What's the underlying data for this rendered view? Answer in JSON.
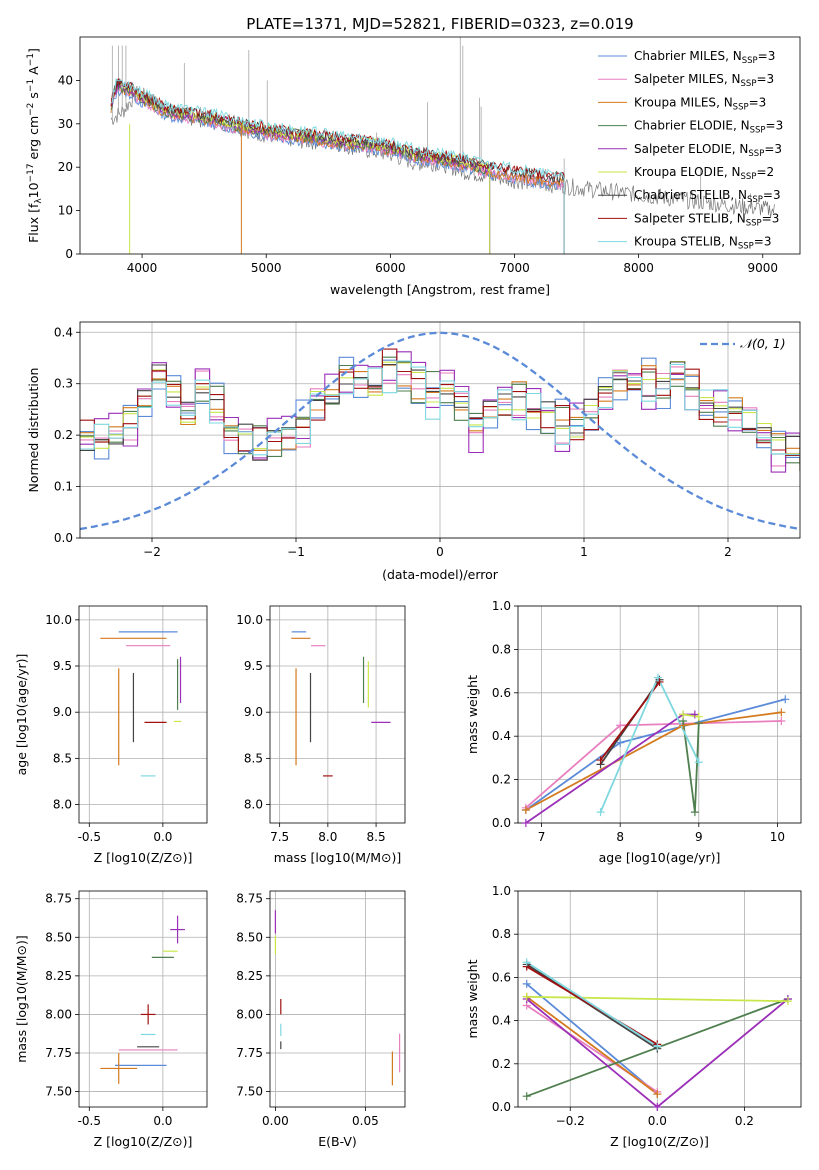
{
  "colors": {
    "Chabrier MILES": "#5b8bd8",
    "Salpeter MILES": "#e87fbf",
    "Kroupa MILES": "#d47a1e",
    "Chabrier ELODIE": "#4f7f4f",
    "Salpeter ELODIE": "#9b2fb8",
    "Kroupa ELODIE": "#c8e64a",
    "Chabrier STELIB": "#444444",
    "Salpeter STELIB": "#a01010",
    "Kroupa STELIB": "#7fd8e0",
    "normal": "#5b8bd8"
  },
  "chart_data": [
    {
      "id": "spectrum",
      "type": "line",
      "title": "PLATE=1371, MJD=52821, FIBERID=0323, z=0.019",
      "xlabel": "wavelength [Angstrom, rest frame]",
      "ylabel": "Flux [f_λ10^-17 erg cm^-2 s^-1 A^-1]",
      "xlim": [
        3500,
        9300
      ],
      "ylim": [
        0,
        50
      ],
      "xticks": [
        4000,
        5000,
        6000,
        7000,
        8000,
        9000
      ],
      "yticks": [
        0,
        10,
        20,
        30,
        40
      ],
      "grid": false,
      "legend_position": "top-right",
      "legend": [
        {
          "name": "Chabrier MILES",
          "nssp": "3"
        },
        {
          "name": "Salpeter MILES",
          "nssp": "3"
        },
        {
          "name": "Kroupa MILES",
          "nssp": "3"
        },
        {
          "name": "Chabrier ELODIE",
          "nssp": "3"
        },
        {
          "name": "Salpeter ELODIE",
          "nssp": "3"
        },
        {
          "name": "Kroupa ELODIE",
          "nssp": "2"
        },
        {
          "name": "Chabrier STELIB",
          "nssp": "3"
        },
        {
          "name": "Salpeter STELIB",
          "nssp": "3"
        },
        {
          "name": "Kroupa STELIB",
          "nssp": "3"
        }
      ],
      "data_continuum": [
        [
          3750,
          31
        ],
        [
          3850,
          33
        ],
        [
          3950,
          37
        ],
        [
          4050,
          36
        ],
        [
          4150,
          34
        ],
        [
          4300,
          32
        ],
        [
          4500,
          31
        ],
        [
          4700,
          30
        ],
        [
          4900,
          28
        ],
        [
          5100,
          27
        ],
        [
          5300,
          26
        ],
        [
          5500,
          26
        ],
        [
          5800,
          24
        ],
        [
          6000,
          23
        ],
        [
          6200,
          21
        ],
        [
          6400,
          21
        ],
        [
          6600,
          19
        ],
        [
          6800,
          18
        ],
        [
          7000,
          17
        ],
        [
          7300,
          16
        ],
        [
          7600,
          15
        ],
        [
          7900,
          14
        ],
        [
          8200,
          13
        ],
        [
          8500,
          12
        ],
        [
          8800,
          11
        ],
        [
          9000,
          10.5
        ],
        [
          9100,
          10
        ]
      ],
      "model_continuum": [
        [
          3750,
          34
        ],
        [
          3800,
          39
        ],
        [
          3900,
          38
        ],
        [
          4000,
          36
        ],
        [
          4200,
          33
        ],
        [
          4400,
          32
        ],
        [
          4600,
          31
        ],
        [
          4800,
          29.5
        ],
        [
          5000,
          28.5
        ],
        [
          5200,
          27.5
        ],
        [
          5400,
          27
        ],
        [
          5600,
          26
        ],
        [
          5800,
          25.5
        ],
        [
          6000,
          24.5
        ],
        [
          6200,
          23
        ],
        [
          6400,
          22
        ],
        [
          6600,
          21
        ],
        [
          6800,
          19.5
        ],
        [
          7000,
          18.5
        ],
        [
          7200,
          17.5
        ],
        [
          7400,
          17
        ]
      ]
    },
    {
      "id": "residual-hist",
      "type": "line",
      "xlabel": "(data-model)/error",
      "ylabel": "Normed distribution",
      "xlim": [
        -2.5,
        2.5
      ],
      "ylim": [
        0,
        0.42
      ],
      "xticks": [
        -2,
        -1,
        0,
        1,
        2
      ],
      "yticks": [
        0.0,
        0.1,
        0.2,
        0.3,
        0.4
      ],
      "grid": true,
      "legend_position": "top-right",
      "normal_label": "𝒩(0, 1)",
      "bin_width": 0.1,
      "histogram_envelope": [
        0.19,
        0.19,
        0.2,
        0.23,
        0.26,
        0.31,
        0.27,
        0.24,
        0.3,
        0.26,
        0.2,
        0.2,
        0.18,
        0.19,
        0.2,
        0.22,
        0.26,
        0.28,
        0.3,
        0.31,
        0.3,
        0.33,
        0.32,
        0.3,
        0.28,
        0.29,
        0.26,
        0.22,
        0.24,
        0.26,
        0.27,
        0.25,
        0.24,
        0.22,
        0.22,
        0.24,
        0.28,
        0.31,
        0.3,
        0.3,
        0.29,
        0.32,
        0.29,
        0.26,
        0.25,
        0.24,
        0.23,
        0.2,
        0.18,
        0.17,
        0.15,
        0.12,
        0.11,
        0.1,
        0.12,
        0.1,
        0.08,
        0.09,
        0.07,
        0.1,
        0.1,
        0.11,
        0.07,
        0.06,
        0.08,
        0.06,
        0.07,
        0.05,
        0.04,
        0.05,
        0.04,
        0.05,
        0.04,
        0.03,
        0.04,
        0.03,
        0.04,
        0.03,
        0.03,
        0.03
      ],
      "series_offsets": [
        0.03,
        -0.02,
        0.01,
        0.02,
        -0.03,
        0.0,
        -0.01,
        0.015,
        -0.025
      ]
    },
    {
      "id": "age-vs-Z",
      "type": "scatter",
      "xlabel": "Z [log10(Z/Z⊙)]",
      "ylabel": "age [log10(age/yr)]",
      "xlim": [
        -0.57,
        0.3
      ],
      "ylim": [
        7.8,
        10.15
      ],
      "xticks": [
        -0.5,
        0.0
      ],
      "yticks": [
        8.0,
        8.5,
        9.0,
        9.5,
        10.0
      ],
      "xtick_labels": [
        "-0.5",
        "0.0"
      ],
      "ytick_labels": [
        "8.0",
        "8.5",
        "9.0",
        "9.5",
        "10.0"
      ],
      "grid": true,
      "points": [
        {
          "s": "Chabrier MILES",
          "x": -0.1,
          "y": 9.87,
          "xe": 0.4,
          "ye": 0.0
        },
        {
          "s": "Kroupa MILES",
          "x": -0.2,
          "y": 9.8,
          "xe": 0.45,
          "ye": 0.0
        },
        {
          "s": "Salpeter MILES",
          "x": -0.1,
          "y": 9.72,
          "xe": 0.3,
          "ye": 0.0
        },
        {
          "s": "Kroupa MILES",
          "x": -0.3,
          "y": 8.95,
          "xe": 0.0,
          "ye": 1.05
        },
        {
          "s": "Chabrier STELIB",
          "x": -0.2,
          "y": 9.05,
          "xe": 0.0,
          "ye": 0.75
        },
        {
          "s": "Kroupa STELIB",
          "x": -0.1,
          "y": 8.31,
          "xe": 0.1,
          "ye": 0.0
        },
        {
          "s": "Salpeter STELIB",
          "x": -0.05,
          "y": 8.89,
          "xe": 0.15,
          "ye": 0.0
        },
        {
          "s": "Kroupa ELODIE",
          "x": 0.1,
          "y": 8.9,
          "xe": 0.05,
          "ye": 0.0
        },
        {
          "s": "Chabrier ELODIE",
          "x": 0.1,
          "y": 9.3,
          "xe": 0.0,
          "ye": 0.55
        },
        {
          "s": "Salpeter ELODIE",
          "x": 0.12,
          "y": 9.35,
          "xe": 0.0,
          "ye": 0.5
        }
      ]
    },
    {
      "id": "age-vs-mass",
      "type": "scatter",
      "xlabel": "mass [log10(M/M⊙)]",
      "xlim": [
        7.4,
        8.8
      ],
      "ylim": [
        7.8,
        10.15
      ],
      "xticks": [
        7.5,
        8.0,
        8.5
      ],
      "yticks": [
        8.0,
        8.5,
        9.0,
        9.5,
        10.0
      ],
      "xtick_labels": [
        "7.5",
        "8.0",
        "8.5"
      ],
      "ytick_labels": [
        "8.0",
        "8.5",
        "9.0",
        "9.5",
        "10.0"
      ],
      "grid": true,
      "points": [
        {
          "s": "Chabrier MILES",
          "x": 7.7,
          "y": 9.87,
          "xe": 0.15,
          "ye": 0.0
        },
        {
          "s": "Kroupa MILES",
          "x": 7.72,
          "y": 9.8,
          "xe": 0.2,
          "ye": 0.0
        },
        {
          "s": "Salpeter MILES",
          "x": 7.9,
          "y": 9.72,
          "xe": 0.15,
          "ye": 0.0
        },
        {
          "s": "Kroupa MILES",
          "x": 7.67,
          "y": 8.95,
          "xe": 0.0,
          "ye": 1.05
        },
        {
          "s": "Chabrier STELIB",
          "x": 7.82,
          "y": 9.05,
          "xe": 0.0,
          "ye": 0.75
        },
        {
          "s": "Salpeter STELIB",
          "x": 8.0,
          "y": 8.31,
          "xe": 0.1,
          "ye": 0.0
        },
        {
          "s": "Salpeter ELODIE",
          "x": 8.55,
          "y": 8.89,
          "xe": 0.2,
          "ye": 0.0
        },
        {
          "s": "Chabrier ELODIE",
          "x": 8.37,
          "y": 9.35,
          "xe": 0.0,
          "ye": 0.5
        },
        {
          "s": "Kroupa ELODIE",
          "x": 8.42,
          "y": 9.3,
          "xe": 0.0,
          "ye": 0.5
        }
      ]
    },
    {
      "id": "weight-vs-age",
      "type": "line",
      "xlabel": "age [log10(age/yr)]",
      "ylabel": "mass weight",
      "xlim": [
        6.7,
        10.3
      ],
      "ylim": [
        0.0,
        1.0
      ],
      "xticks": [
        7,
        8,
        9,
        10
      ],
      "yticks": [
        0.0,
        0.2,
        0.4,
        0.6,
        0.8,
        1.0
      ],
      "xtick_labels": [
        "7",
        "8",
        "9",
        "10"
      ],
      "ytick_labels": [
        "0.0",
        "0.2",
        "0.4",
        "0.6",
        "0.8",
        "1.0"
      ],
      "grid": true,
      "series": [
        {
          "name": "Chabrier MILES",
          "x": [
            6.8,
            8.0,
            10.1
          ],
          "y": [
            0.06,
            0.37,
            0.57
          ]
        },
        {
          "name": "Salpeter MILES",
          "x": [
            6.8,
            8.0,
            10.05
          ],
          "y": [
            0.07,
            0.45,
            0.47
          ]
        },
        {
          "name": "Kroupa MILES",
          "x": [
            6.8,
            8.8,
            10.05
          ],
          "y": [
            0.06,
            0.45,
            0.51
          ]
        },
        {
          "name": "Chabrier ELODIE",
          "x": [
            8.8,
            8.95,
            9.0
          ],
          "y": [
            0.47,
            0.05,
            0.46
          ]
        },
        {
          "name": "Salpeter ELODIE",
          "x": [
            6.8,
            8.8,
            8.95
          ],
          "y": [
            0.0,
            0.5,
            0.5
          ]
        },
        {
          "name": "Kroupa ELODIE",
          "x": [
            8.8,
            9.0
          ],
          "y": [
            0.5,
            0.49
          ]
        },
        {
          "name": "Chabrier STELIB",
          "x": [
            7.75,
            8.5
          ],
          "y": [
            0.27,
            0.66
          ]
        },
        {
          "name": "Salpeter STELIB",
          "x": [
            7.75,
            8.5
          ],
          "y": [
            0.29,
            0.65
          ]
        },
        {
          "name": "Kroupa STELIB",
          "x": [
            7.75,
            8.48,
            9.0
          ],
          "y": [
            0.05,
            0.67,
            0.28
          ]
        }
      ]
    },
    {
      "id": "mass-vs-Z",
      "type": "scatter",
      "xlabel": "Z [log10(Z/Z⊙)]",
      "ylabel": "mass [log10(M/M⊙)]",
      "xlim": [
        -0.57,
        0.3
      ],
      "ylim": [
        7.4,
        8.8
      ],
      "xticks": [
        -0.5,
        0.0
      ],
      "yticks": [
        7.5,
        7.75,
        8.0,
        8.25,
        8.5,
        8.75
      ],
      "xtick_labels": [
        "-0.5",
        "0.0"
      ],
      "ytick_labels": [
        "7.50",
        "7.75",
        "8.00",
        "8.25",
        "8.50",
        "8.75"
      ],
      "grid": true,
      "points": [
        {
          "s": "Salpeter ELODIE",
          "x": 0.1,
          "y": 8.55,
          "xe": 0.1,
          "ye": 0.18
        },
        {
          "s": "Kroupa ELODIE",
          "x": 0.05,
          "y": 8.41,
          "xe": 0.1,
          "ye": 0.0
        },
        {
          "s": "Chabrier ELODIE",
          "x": 0.0,
          "y": 8.37,
          "xe": 0.15,
          "ye": 0.0
        },
        {
          "s": "Salpeter STELIB",
          "x": -0.1,
          "y": 8.0,
          "xe": 0.1,
          "ye": 0.13
        },
        {
          "s": "Kroupa STELIB",
          "x": -0.1,
          "y": 7.87,
          "xe": 0.1,
          "ye": 0.0
        },
        {
          "s": "Chabrier STELIB",
          "x": -0.1,
          "y": 7.79,
          "xe": 0.15,
          "ye": 0.0
        },
        {
          "s": "Salpeter MILES",
          "x": -0.1,
          "y": 7.77,
          "xe": 0.4,
          "ye": 0.0
        },
        {
          "s": "Chabrier MILES",
          "x": -0.15,
          "y": 7.67,
          "xe": 0.35,
          "ye": 0.0
        },
        {
          "s": "Kroupa MILES",
          "x": -0.3,
          "y": 7.65,
          "xe": 0.25,
          "ye": 0.2
        }
      ]
    },
    {
      "id": "mass-vs-EBV",
      "type": "scatter",
      "xlabel": "E(B-V)",
      "xlim": [
        -0.003,
        0.072
      ],
      "ylim": [
        7.4,
        8.8
      ],
      "xticks": [
        0.0,
        0.05
      ],
      "yticks": [
        7.5,
        7.75,
        8.0,
        8.25,
        8.5,
        8.75
      ],
      "xtick_labels": [
        "0.00",
        "0.05"
      ],
      "ytick_labels": [
        "7.50",
        "7.75",
        "8.00",
        "8.25",
        "8.50",
        "8.75"
      ],
      "grid": true,
      "points": [
        {
          "s": "Salpeter ELODIE",
          "x": 0.0,
          "y": 8.6,
          "xe": 0.0,
          "ye": 0.15
        },
        {
          "s": "Kroupa ELODIE",
          "x": 0.0,
          "y": 8.45,
          "xe": 0.0,
          "ye": 0.12
        },
        {
          "s": "Salpeter STELIB",
          "x": 0.003,
          "y": 8.05,
          "xe": 0.0,
          "ye": 0.1
        },
        {
          "s": "Kroupa STELIB",
          "x": 0.003,
          "y": 7.9,
          "xe": 0.0,
          "ye": 0.08
        },
        {
          "s": "Chabrier STELIB",
          "x": 0.003,
          "y": 7.8,
          "xe": 0.0,
          "ye": 0.05
        },
        {
          "s": "Kroupa MILES",
          "x": 0.065,
          "y": 7.65,
          "xe": 0.0,
          "ye": 0.22
        },
        {
          "s": "Salpeter MILES",
          "x": 0.069,
          "y": 7.75,
          "xe": 0.0,
          "ye": 0.25
        }
      ]
    },
    {
      "id": "weight-vs-Z",
      "type": "line",
      "xlabel": "Z [log10(Z/Z⊙)]",
      "ylabel": "mass weight",
      "xlim": [
        -0.32,
        0.33
      ],
      "ylim": [
        0.0,
        1.0
      ],
      "xticks": [
        -0.2,
        0.0,
        0.2
      ],
      "yticks": [
        0.0,
        0.2,
        0.4,
        0.6,
        0.8,
        1.0
      ],
      "xtick_labels": [
        "−0.2",
        "0.0",
        "0.2"
      ],
      "ytick_labels": [
        "0.0",
        "0.2",
        "0.4",
        "0.6",
        "0.8",
        "1.0"
      ],
      "grid": true,
      "series": [
        {
          "name": "Chabrier MILES",
          "x": [
            -0.3,
            0.0
          ],
          "y": [
            0.57,
            0.06
          ]
        },
        {
          "name": "Salpeter MILES",
          "x": [
            -0.3,
            0.0
          ],
          "y": [
            0.47,
            0.07
          ]
        },
        {
          "name": "Kroupa MILES",
          "x": [
            -0.3,
            0.0
          ],
          "y": [
            0.51,
            0.06
          ]
        },
        {
          "name": "Chabrier ELODIE",
          "x": [
            -0.3,
            0.3
          ],
          "y": [
            0.05,
            0.5
          ]
        },
        {
          "name": "Salpeter ELODIE",
          "x": [
            -0.3,
            0.0,
            0.3
          ],
          "y": [
            0.5,
            0.0,
            0.5
          ]
        },
        {
          "name": "Kroupa ELODIE",
          "x": [
            -0.3,
            0.3
          ],
          "y": [
            0.51,
            0.49
          ]
        },
        {
          "name": "Chabrier STELIB",
          "x": [
            -0.3,
            0.0
          ],
          "y": [
            0.66,
            0.27
          ]
        },
        {
          "name": "Salpeter STELIB",
          "x": [
            -0.3,
            0.0
          ],
          "y": [
            0.65,
            0.29
          ]
        },
        {
          "name": "Kroupa STELIB",
          "x": [
            -0.3,
            0.0
          ],
          "y": [
            0.67,
            0.28
          ]
        }
      ]
    }
  ]
}
